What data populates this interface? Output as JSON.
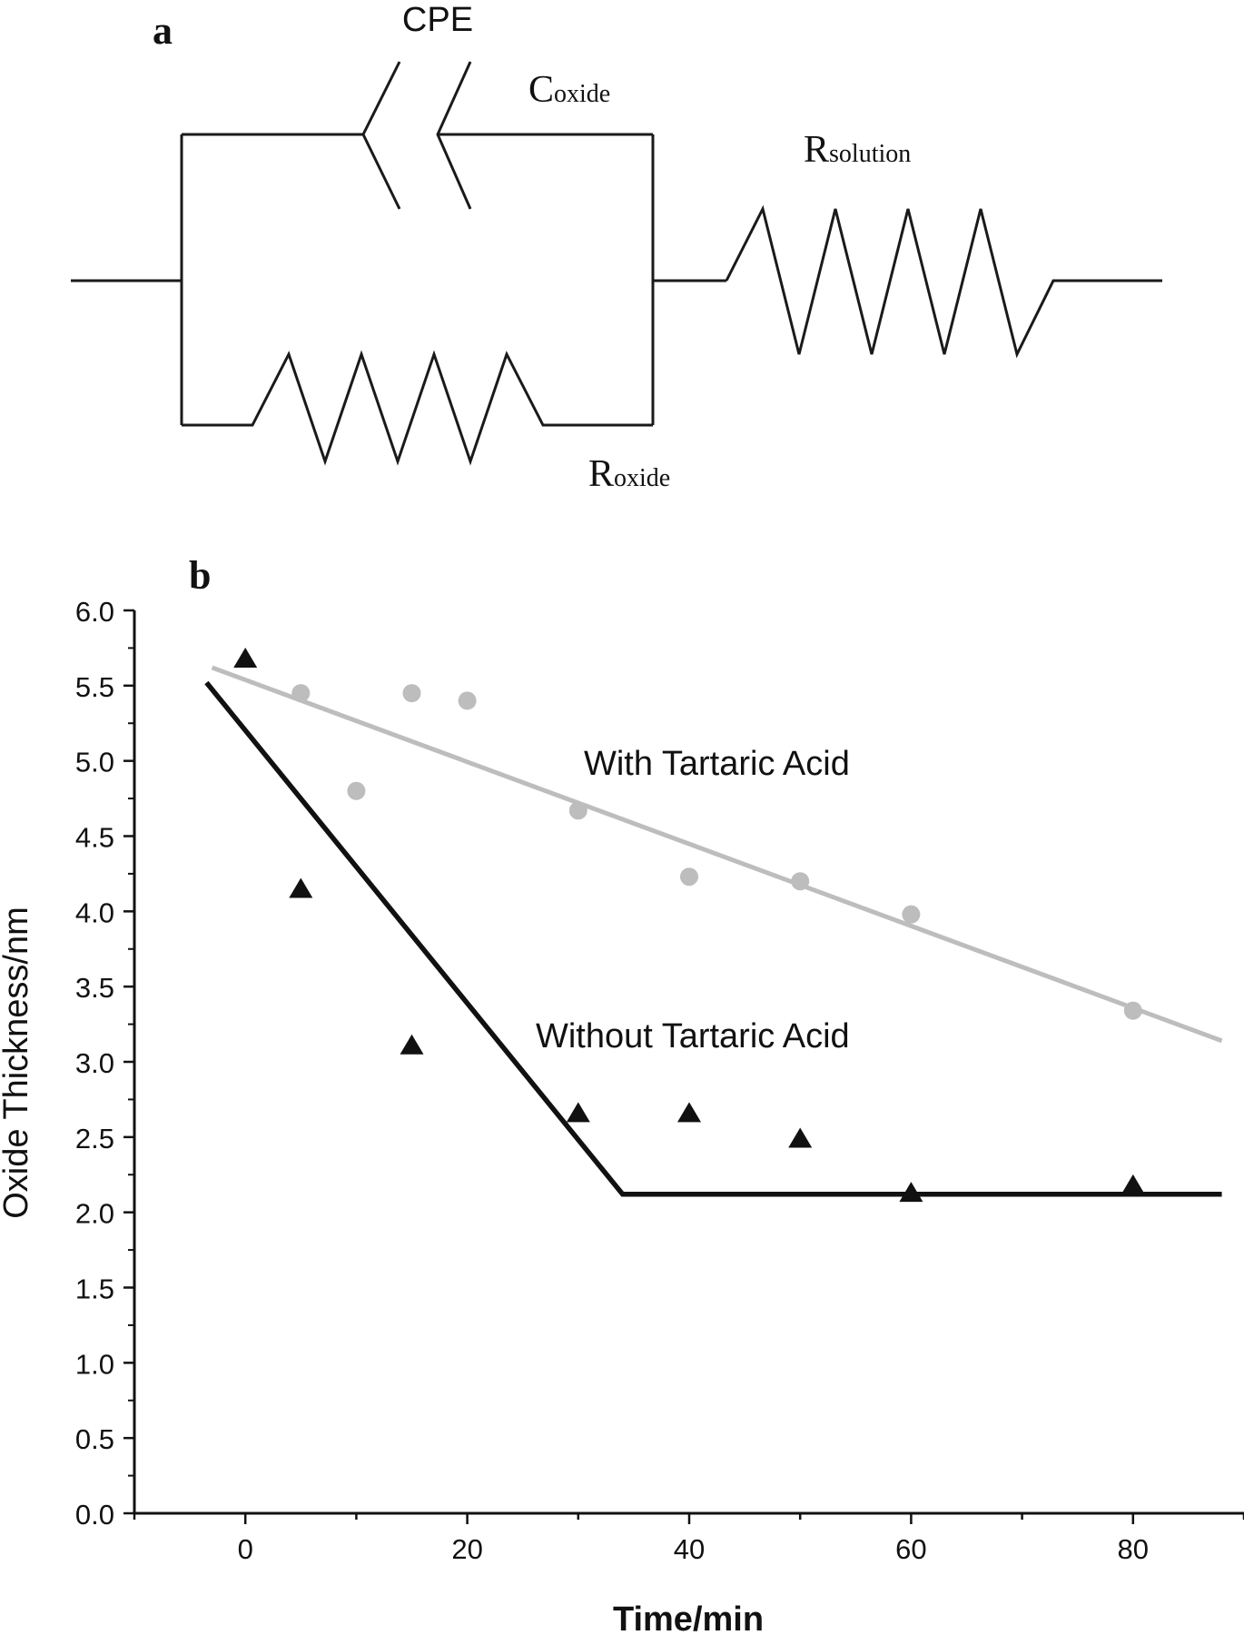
{
  "panel_a": {
    "label": "a",
    "cpe_label": "CPE",
    "c_oxide": {
      "main": "C",
      "sub": "oxide"
    },
    "r_solution": {
      "main": "R",
      "sub": "solution"
    },
    "r_oxide": {
      "main": "R",
      "sub": "oxide"
    }
  },
  "chart_data": {
    "type": "scatter",
    "panel_label": "b",
    "xlabel": "Time/min",
    "ylabel": "Oxide Thickness/nm",
    "xlim": [
      -10,
      90
    ],
    "ylim": [
      0.0,
      6.0
    ],
    "x_ticks": [
      0,
      20,
      40,
      60,
      80
    ],
    "y_ticks": [
      "0.0",
      "0.5",
      "1.0",
      "1.5",
      "2.0",
      "2.5",
      "3.0",
      "3.5",
      "4.0",
      "4.5",
      "5.0",
      "5.5",
      "6.0"
    ],
    "grid": false,
    "series": [
      {
        "name": "With Tartaric Acid",
        "marker": "circle",
        "color": "#bdbdbd",
        "points": [
          [
            5,
            5.45
          ],
          [
            10,
            4.8
          ],
          [
            15,
            5.45
          ],
          [
            20,
            5.4
          ],
          [
            30,
            4.67
          ],
          [
            40,
            4.23
          ],
          [
            50,
            4.2
          ],
          [
            60,
            3.98
          ],
          [
            80,
            3.34
          ]
        ],
        "fit": [
          [
            -3,
            5.62
          ],
          [
            88,
            3.14
          ]
        ]
      },
      {
        "name": "Without Tartaric Acid",
        "marker": "triangle",
        "color": "#111111",
        "points": [
          [
            0,
            5.67
          ],
          [
            5,
            4.14
          ],
          [
            15,
            3.1
          ],
          [
            30,
            2.65
          ],
          [
            40,
            2.65
          ],
          [
            50,
            2.48
          ],
          [
            60,
            2.12
          ],
          [
            80,
            2.17
          ]
        ],
        "fit": [
          [
            -3.5,
            5.52
          ],
          [
            34,
            2.12
          ],
          [
            88,
            2.12
          ]
        ]
      }
    ]
  }
}
